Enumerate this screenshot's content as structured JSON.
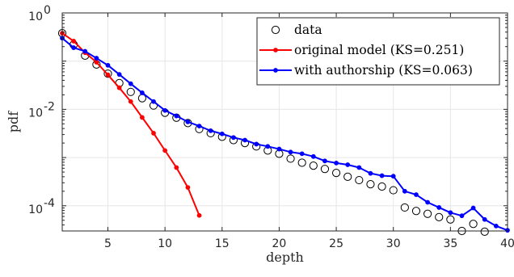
{
  "chart_data": {
    "type": "line",
    "xlabel": "depth",
    "ylabel": "pdf",
    "yscale": "log",
    "xlim": [
      1,
      40
    ],
    "ylim": [
      3e-05,
      1
    ],
    "grid": true,
    "legend_position": "top-right",
    "x_ticks": [
      5,
      10,
      15,
      20,
      25,
      30,
      35,
      40
    ],
    "y_ticks": [
      {
        "value": 1,
        "base": "10",
        "exp": "0"
      },
      {
        "value": 0.01,
        "base": "10",
        "exp": "-2"
      },
      {
        "value": 0.0001,
        "base": "10",
        "exp": "-4"
      }
    ],
    "series": [
      {
        "name": "data",
        "style": "markers",
        "color": "#000000",
        "x": [
          1,
          2,
          3,
          4,
          5,
          6,
          7,
          8,
          9,
          10,
          11,
          12,
          13,
          14,
          15,
          16,
          17,
          18,
          19,
          20,
          21,
          22,
          23,
          24,
          25,
          26,
          27,
          28,
          29,
          30,
          31,
          32,
          33,
          34,
          35,
          36,
          37,
          38,
          39,
          40
        ],
        "y": [
          0.38,
          0.22,
          0.13,
          0.085,
          0.055,
          0.035,
          0.023,
          0.017,
          0.012,
          0.0085,
          0.0067,
          0.0052,
          0.0039,
          0.0032,
          0.0027,
          0.0023,
          0.002,
          0.0017,
          0.0014,
          0.0012,
          0.00095,
          0.00078,
          0.00068,
          0.00058,
          0.00048,
          0.0004,
          0.00034,
          0.00028,
          0.00025,
          0.00021,
          9.2e-05,
          7.8e-05,
          6.8e-05,
          5.8e-05,
          5.2e-05,
          3e-05,
          4.2e-05,
          2.9e-05,
          null,
          null
        ]
      },
      {
        "name": "original model (KS=0.251)",
        "style": "line-markers",
        "color": "#ff0000",
        "x": [
          1,
          2,
          3,
          4,
          5,
          6,
          7,
          8,
          9,
          10,
          11,
          12,
          13
        ],
        "y": [
          0.38,
          0.26,
          0.15,
          0.095,
          0.052,
          0.028,
          0.0145,
          0.0068,
          0.0032,
          0.0014,
          0.00062,
          0.00024,
          6.3e-05
        ]
      },
      {
        "name": "with authorship (KS=0.063)",
        "style": "line-markers",
        "color": "#0000ff",
        "x": [
          1,
          2,
          3,
          4,
          5,
          6,
          7,
          8,
          9,
          10,
          11,
          12,
          13,
          14,
          15,
          16,
          17,
          18,
          19,
          20,
          21,
          22,
          23,
          24,
          25,
          26,
          27,
          28,
          29,
          30,
          31,
          32,
          33,
          34,
          35,
          36,
          37,
          38,
          39,
          40
        ],
        "y": [
          0.3,
          0.19,
          0.16,
          0.115,
          0.082,
          0.053,
          0.034,
          0.022,
          0.0145,
          0.0095,
          0.0073,
          0.0055,
          0.0045,
          0.0036,
          0.0031,
          0.0026,
          0.0023,
          0.0019,
          0.0017,
          0.0015,
          0.0013,
          0.0012,
          0.00105,
          0.00085,
          0.00077,
          0.00071,
          0.00062,
          0.00047,
          0.00042,
          0.00041,
          0.0002,
          0.00017,
          0.000118,
          9.2e-05,
          7.2e-05,
          6.2e-05,
          9e-05,
          5.2e-05,
          3.8e-05,
          3.1e-05
        ]
      }
    ]
  }
}
